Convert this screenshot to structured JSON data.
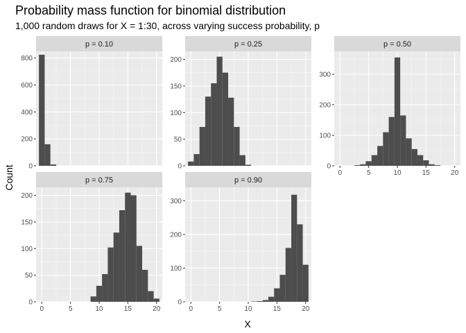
{
  "chart_data": {
    "type": "bar",
    "title": "Probability mass function for binomial distribution",
    "subtitle": "1,000 random draws for X = 1:30, across varying success probability, p",
    "xlabel": "X",
    "ylabel": "Count",
    "grid": true,
    "legend": "none",
    "bar_color": "#4d4d4d",
    "panel_bg": "#ebebeb",
    "strip_bg": "#d9d9d9",
    "xlim": [
      -1,
      21
    ],
    "panels": [
      {
        "strip": "p = 0.10",
        "ylim": [
          0,
          850
        ],
        "yticks": [
          0,
          200,
          400,
          600,
          800
        ],
        "show_x_axis": false,
        "bins": [
          [
            0,
            825
          ],
          [
            1,
            160
          ],
          [
            2,
            10
          ]
        ]
      },
      {
        "strip": "p = 0.25",
        "ylim": [
          0,
          215
        ],
        "yticks": [
          0,
          50,
          100,
          150,
          200
        ],
        "show_x_axis": false,
        "bins": [
          [
            0,
            8
          ],
          [
            1,
            22
          ],
          [
            2,
            73
          ],
          [
            3,
            130
          ],
          [
            4,
            155
          ],
          [
            5,
            205
          ],
          [
            6,
            175
          ],
          [
            7,
            128
          ],
          [
            8,
            73
          ],
          [
            9,
            20
          ],
          [
            10,
            2
          ]
        ]
      },
      {
        "strip": "p = 0.50",
        "ylim": [
          0,
          375
        ],
        "yticks": [
          0,
          100,
          200,
          300
        ],
        "show_x_axis": true,
        "xticks": [
          0,
          5,
          10,
          15,
          20
        ],
        "bins": [
          [
            3,
            2
          ],
          [
            4,
            5
          ],
          [
            5,
            15
          ],
          [
            6,
            35
          ],
          [
            7,
            65
          ],
          [
            8,
            110
          ],
          [
            9,
            160
          ],
          [
            10,
            355
          ],
          [
            11,
            165
          ],
          [
            12,
            90
          ],
          [
            13,
            55
          ],
          [
            14,
            35
          ],
          [
            15,
            18
          ],
          [
            16,
            5
          ],
          [
            17,
            2
          ]
        ]
      },
      {
        "strip": "p = 0.75",
        "ylim": [
          0,
          215
        ],
        "yticks": [
          0,
          50,
          100,
          150,
          200
        ],
        "show_x_axis": true,
        "xticks": [
          0,
          5,
          10,
          15,
          20
        ],
        "bins": [
          [
            9,
            10
          ],
          [
            10,
            30
          ],
          [
            11,
            52
          ],
          [
            12,
            102
          ],
          [
            13,
            130
          ],
          [
            14,
            172
          ],
          [
            15,
            205
          ],
          [
            16,
            200
          ],
          [
            17,
            105
          ],
          [
            18,
            60
          ],
          [
            19,
            20
          ],
          [
            20,
            6
          ]
        ]
      },
      {
        "strip": "p = 0.90",
        "ylim": [
          0,
          340
        ],
        "yticks": [
          0,
          100,
          200,
          300
        ],
        "show_x_axis": true,
        "xticks": [
          0,
          5,
          10,
          15,
          20
        ],
        "bins": [
          [
            11,
            1
          ],
          [
            12,
            2
          ],
          [
            13,
            5
          ],
          [
            14,
            15
          ],
          [
            15,
            40
          ],
          [
            16,
            80
          ],
          [
            17,
            160
          ],
          [
            18,
            318
          ],
          [
            19,
            230
          ],
          [
            20,
            110
          ]
        ]
      }
    ]
  }
}
